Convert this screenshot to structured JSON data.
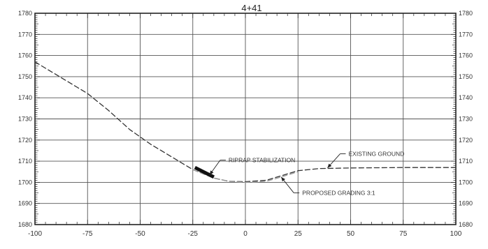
{
  "title": "4+41",
  "chart_data": {
    "type": "line",
    "title": "4+41",
    "xlim": [
      -100,
      100
    ],
    "ylim": [
      1680,
      1780
    ],
    "x_ticks": [
      -100,
      -75,
      -50,
      -25,
      0,
      25,
      50,
      75,
      100
    ],
    "y_ticks": [
      1680,
      1690,
      1700,
      1710,
      1720,
      1730,
      1740,
      1750,
      1760,
      1770,
      1780
    ],
    "x_tick_labels": [
      "-100",
      "-75",
      "-50",
      "-25",
      "0",
      "25",
      "50",
      "75",
      "100"
    ],
    "y_tick_labels": [
      "1680",
      "1690",
      "1700",
      "1710",
      "1720",
      "1730",
      "1740",
      "1750",
      "1760",
      "1770",
      "1780"
    ],
    "grid": true,
    "series": [
      {
        "name": "EXISTING GROUND",
        "style": "dashed",
        "color": "#333333",
        "x": [
          -100,
          -80,
          -75,
          -65,
          -55,
          -45,
          -35,
          -25,
          -15,
          -8,
          0,
          10,
          20,
          25,
          35,
          50,
          75,
          100
        ],
        "y": [
          1757,
          1745,
          1742,
          1734,
          1725,
          1718,
          1712,
          1706,
          1702,
          1700.5,
          1700.3,
          1701,
          1704,
          1705.5,
          1706.5,
          1706.8,
          1707,
          1707
        ]
      },
      {
        "name": "PROPOSED GRADING 3:1",
        "style": "dashed",
        "color": "#999999",
        "x": [
          -25,
          -15,
          -8,
          0,
          10,
          17,
          25
        ],
        "y": [
          1706,
          1702,
          1700.5,
          1700,
          1700.5,
          1702.5,
          1705
        ]
      },
      {
        "name": "RIPRAP STABILIZATION",
        "style": "thick",
        "color": "#111111",
        "x": [
          -24,
          -15
        ],
        "y": [
          1707,
          1702.5
        ]
      }
    ],
    "annotations": [
      {
        "text": "RIPRAP STABILIZATION",
        "x": -8,
        "y": 1709.5,
        "target_x": -17,
        "target_y": 1703.5
      },
      {
        "text": "EXISTING GROUND",
        "x": 49,
        "y": 1712.5,
        "target_x": 39,
        "target_y": 1706.8
      },
      {
        "text": "PROPOSED GRADING 3:1",
        "x": 27,
        "y": 1694,
        "target_x": 17,
        "target_y": 1702.5
      }
    ],
    "colors": {
      "grid": "#555555",
      "frame": "#222222",
      "ground": "#333333",
      "proposed": "#999999",
      "riprap": "#111111"
    }
  }
}
